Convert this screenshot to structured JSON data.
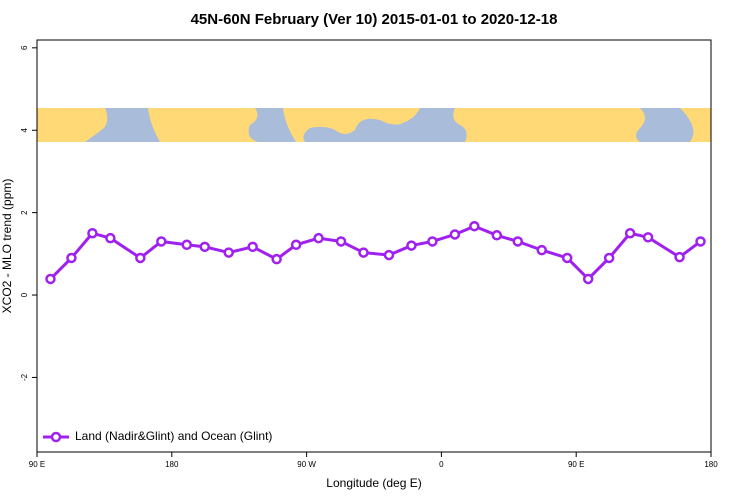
{
  "chart_data": {
    "type": "line",
    "title": "45N-60N February (Ver 10)   2015-01-01 to 2020-12-18",
    "x_label": "Longitude (deg E)",
    "y_label": "XCO2 - MLO trend (ppm)",
    "x": [
      99,
      113,
      127,
      139,
      159,
      173,
      190,
      202,
      218,
      234,
      250,
      263,
      278,
      293,
      308,
      325,
      340,
      354,
      369,
      382,
      397,
      411,
      427,
      444,
      458,
      472,
      486,
      498,
      519,
      533
    ],
    "series": [
      {
        "name": "Land (Nadir&Glint) and Ocean (Glint)",
        "color": "#a020f0",
        "values": [
          0.39,
          0.9,
          1.5,
          1.38,
          0.9,
          1.3,
          1.22,
          1.17,
          1.03,
          1.17,
          0.87,
          1.22,
          1.38,
          1.3,
          1.03,
          0.97,
          1.2,
          1.3,
          1.47,
          1.67,
          1.45,
          1.3,
          1.09,
          0.9,
          0.39,
          0.9,
          1.5,
          1.4,
          0.92,
          1.3
        ]
      }
    ],
    "xlim": [
      90,
      540
    ],
    "xticks": [
      {
        "value": 90,
        "label": "90 E"
      },
      180,
      {
        "value": 270,
        "label": "90 W"
      },
      {
        "value": 360,
        "label": "0"
      },
      {
        "value": 450,
        "label": "90 E"
      },
      {
        "value": 540,
        "label": "180"
      }
    ],
    "ylim": [
      -3.81,
      6.19
    ],
    "yticks": [
      -2,
      0,
      2,
      4,
      6
    ],
    "legend": "bottom-left"
  }
}
